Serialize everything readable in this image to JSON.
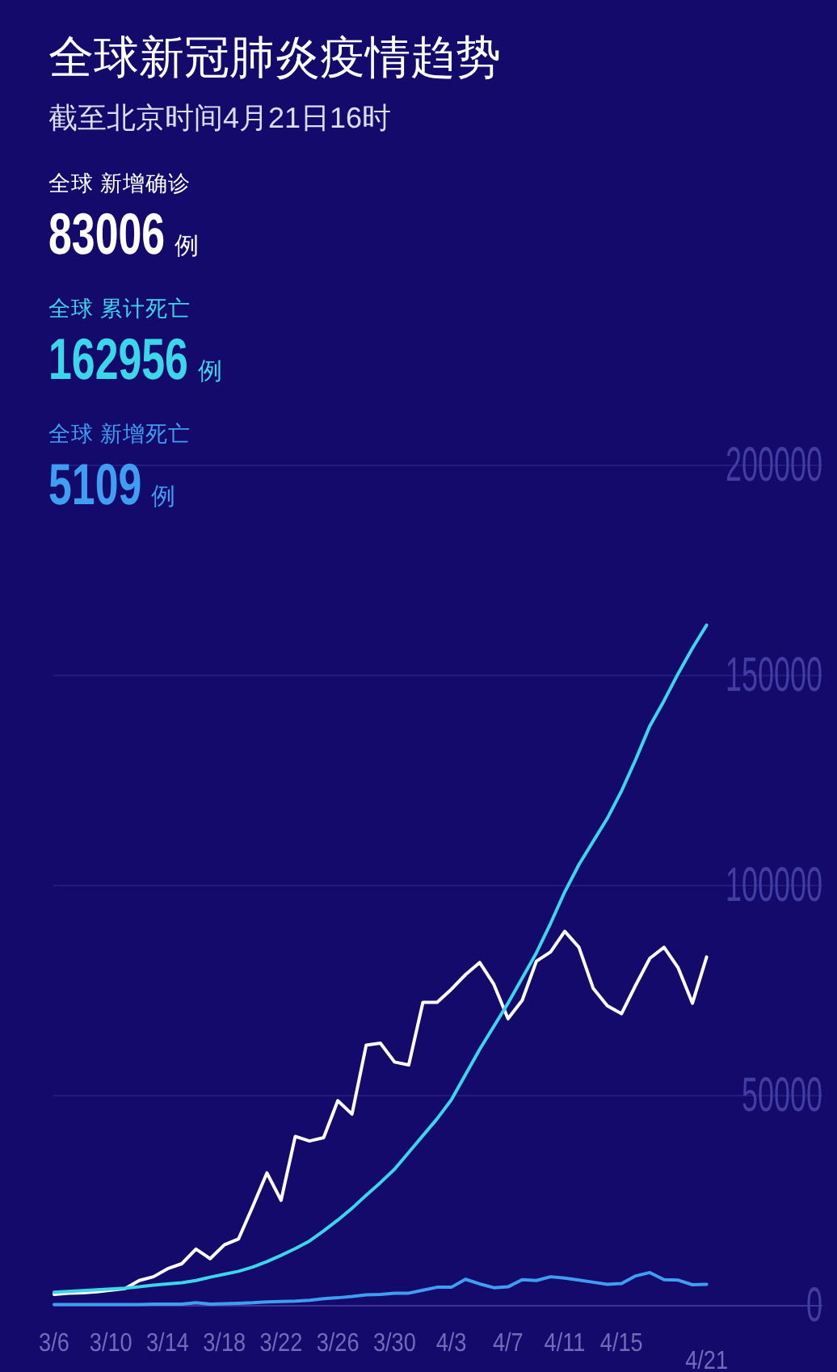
{
  "chart_data": {
    "type": "line",
    "title": "全球新冠肺炎疫情趋势",
    "subtitle": "截至北京时间4月21日16时",
    "categories": [
      "3/6",
      null,
      null,
      null,
      "3/10",
      null,
      null,
      null,
      "3/14",
      null,
      null,
      null,
      "3/18",
      null,
      null,
      null,
      "3/22",
      null,
      null,
      null,
      "3/26",
      null,
      null,
      null,
      "3/30",
      null,
      null,
      null,
      "4/3",
      null,
      null,
      null,
      "4/7",
      null,
      null,
      null,
      "4/11",
      null,
      null,
      null,
      "4/15",
      null,
      null,
      null,
      null,
      null,
      "4/21"
    ],
    "series": [
      {
        "name": "全球 新增确诊",
        "color": "#ffffff",
        "values": [
          2700,
          3000,
          3100,
          3300,
          3700,
          4100,
          6000,
          6900,
          8800,
          10000,
          13500,
          11200,
          14500,
          15900,
          23600,
          31600,
          25100,
          40300,
          39200,
          40000,
          48800,
          45600,
          62000,
          62500,
          58000,
          57300,
          72200,
          72200,
          75300,
          78800,
          81700,
          76500,
          68300,
          72700,
          82000,
          84200,
          89100,
          85300,
          75600,
          71400,
          69500,
          76300,
          82700,
          85300,
          80400,
          72000,
          83000
        ]
      },
      {
        "name": "全球 累计死亡",
        "color": "#3cd6ea",
        "values": [
          3200,
          3400,
          3600,
          3800,
          4000,
          4200,
          4500,
          4900,
          5200,
          5500,
          6000,
          6800,
          7500,
          8200,
          9200,
          10500,
          12000,
          13600,
          15400,
          17800,
          20400,
          23200,
          26300,
          29300,
          32500,
          36500,
          40500,
          44500,
          49000,
          55000,
          61000,
          66500,
          72000,
          78000,
          84000,
          91000,
          98500,
          105000,
          110500,
          116000,
          122500,
          130000,
          138000,
          144000,
          150500,
          156500,
          162000
        ]
      },
      {
        "name": "全球 新增死亡",
        "color": "#3f9ef2",
        "values": [
          300,
          300,
          300,
          300,
          300,
          300,
          300,
          400,
          400,
          400,
          700,
          400,
          500,
          600,
          700,
          900,
          1000,
          1100,
          1300,
          1700,
          1900,
          2200,
          2600,
          2700,
          3000,
          3000,
          3700,
          4400,
          4400,
          6300,
          5200,
          4300,
          4500,
          6200,
          6000,
          6900,
          6600,
          6100,
          5600,
          5100,
          5300,
          7100,
          7900,
          6200,
          6100,
          5000,
          5100
        ]
      }
    ],
    "annotations": [
      "83006 例",
      "162956 例",
      "5109 例"
    ],
    "ylim": [
      0,
      200000
    ],
    "yticks": [
      0,
      50000,
      100000,
      150000,
      200000
    ],
    "grid": "y",
    "legend": "top left"
  }
}
